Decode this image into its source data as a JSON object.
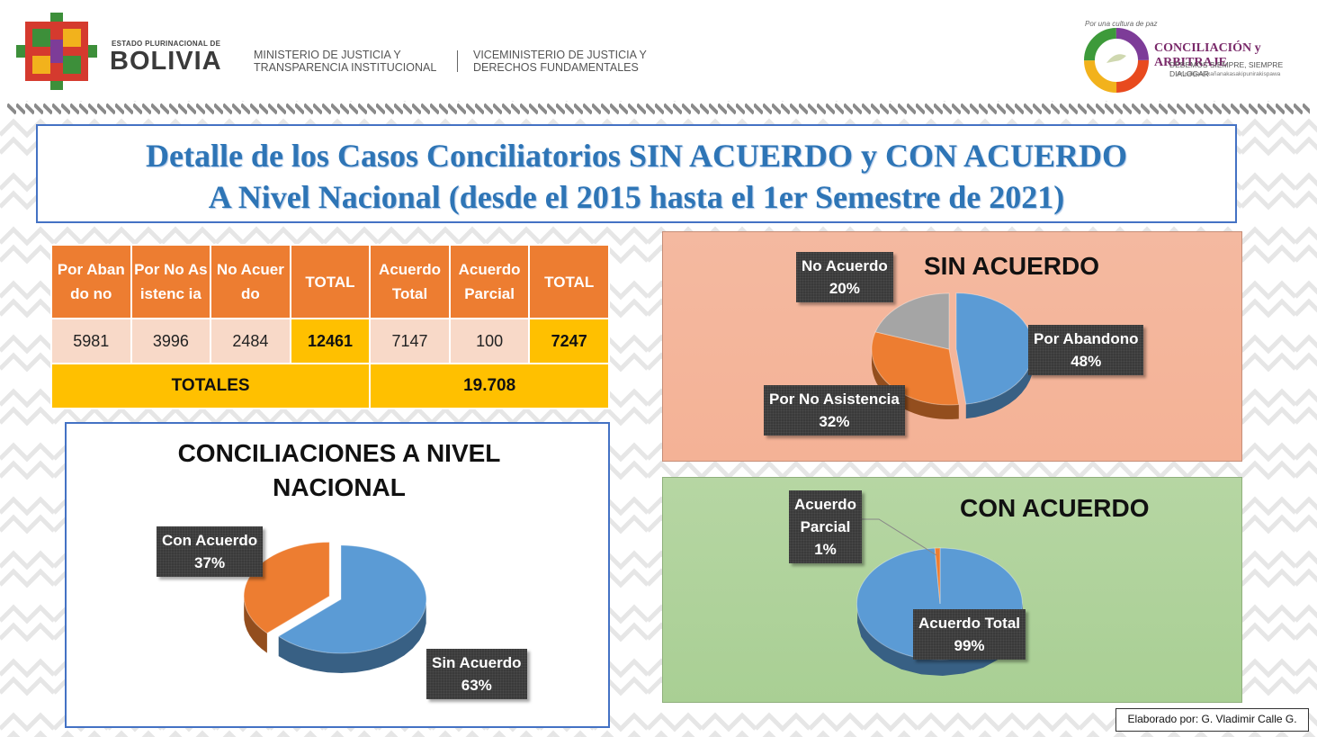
{
  "header": {
    "estado": "ESTADO PLURINACIONAL DE",
    "bolivia": "BOLIVIA",
    "ministerio_1": "MINISTERIO DE JUSTICIA Y",
    "ministerio_2": "TRANSPARENCIA INSTITUCIONAL",
    "viceministerio_1": "VICEMINISTERIO DE JUSTICIA Y",
    "viceministerio_2": "DERECHOS FUNDAMENTALES",
    "logo_tagline": "Por una cultura de paz",
    "logo_title": "CONCILIACIÓN y ARBITRAJE",
    "logo_subtitle": "DEBEMOS SIEMPRE, SIEMPRE DIALOGAR",
    "logo_subtitle2": "Arusiñpasipxañanakasakipunirakispawa"
  },
  "title": {
    "line1": "Detalle de los Casos Conciliatorios SIN ACUERDO y CON ACUERDO",
    "line2": "A Nivel Nacional (desde el 2015 hasta el 1er Semestre de 2021)"
  },
  "table": {
    "headers": [
      "Por Abando no",
      "Por No Asistenc ia",
      "No Acuerdo",
      "TOTAL",
      "Acuerdo Total",
      "Acuerdo Parcial",
      "TOTAL"
    ],
    "values": [
      "5981",
      "3996",
      "2484",
      "12461",
      "7147",
      "100",
      "7247"
    ],
    "totales_label": "TOTALES",
    "totales_value": "19.708"
  },
  "colors": {
    "blue": "#5b9bd5",
    "orange": "#ed7d31",
    "gray": "#a5a5a5",
    "header_orange": "#ed7d31",
    "total_yellow": "#ffc000"
  },
  "chart_data": [
    {
      "type": "pie",
      "title": "CONCILIACIONES A NIVEL NACIONAL",
      "title_line1": "CONCILIACIONES A NIVEL",
      "title_line2": "NACIONAL",
      "slices": [
        {
          "label": "Sin Acuerdo",
          "pct_label": "63%",
          "value": 63,
          "color": "#5b9bd5"
        },
        {
          "label": "Con Acuerdo",
          "pct_label": "37%",
          "value": 37,
          "color": "#ed7d31"
        }
      ]
    },
    {
      "type": "pie",
      "title": "SIN ACUERDO",
      "slices": [
        {
          "label": "Por Abandono",
          "pct_label": "48%",
          "value": 48,
          "color": "#5b9bd5"
        },
        {
          "label": "Por No Asistencia",
          "pct_label": "32%",
          "value": 32,
          "color": "#ed7d31"
        },
        {
          "label": "No Acuerdo",
          "pct_label": "20%",
          "value": 20,
          "color": "#a5a5a5"
        }
      ]
    },
    {
      "type": "pie",
      "title": "CON ACUERDO",
      "slices": [
        {
          "label": "Acuerdo Total",
          "pct_label": "99%",
          "value": 99,
          "color": "#5b9bd5"
        },
        {
          "label": "Acuerdo Parcial",
          "pct_label": "1%",
          "value": 1,
          "color": "#ed7d31"
        }
      ]
    }
  ],
  "credit": "Elaborado por: G. Vladimir Calle G."
}
